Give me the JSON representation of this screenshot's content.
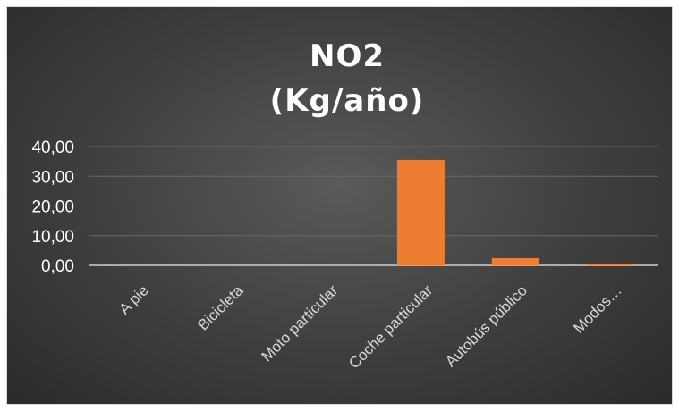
{
  "chart_data": {
    "type": "bar",
    "title_lines": [
      "NO2",
      "(Kg/año)"
    ],
    "categories": [
      "A pie",
      "Bicicleta",
      "Moto particular",
      "Coche particular",
      "Autobús público",
      "Modos…"
    ],
    "values": [
      0,
      0,
      0,
      35.5,
      2.4,
      0.6
    ],
    "y_ticks": [
      "0,00",
      "10,00",
      "20,00",
      "30,00",
      "40,00"
    ],
    "ylim": [
      0,
      40
    ],
    "grid": true,
    "legend": "none",
    "bar_color": "#ed7d31"
  }
}
